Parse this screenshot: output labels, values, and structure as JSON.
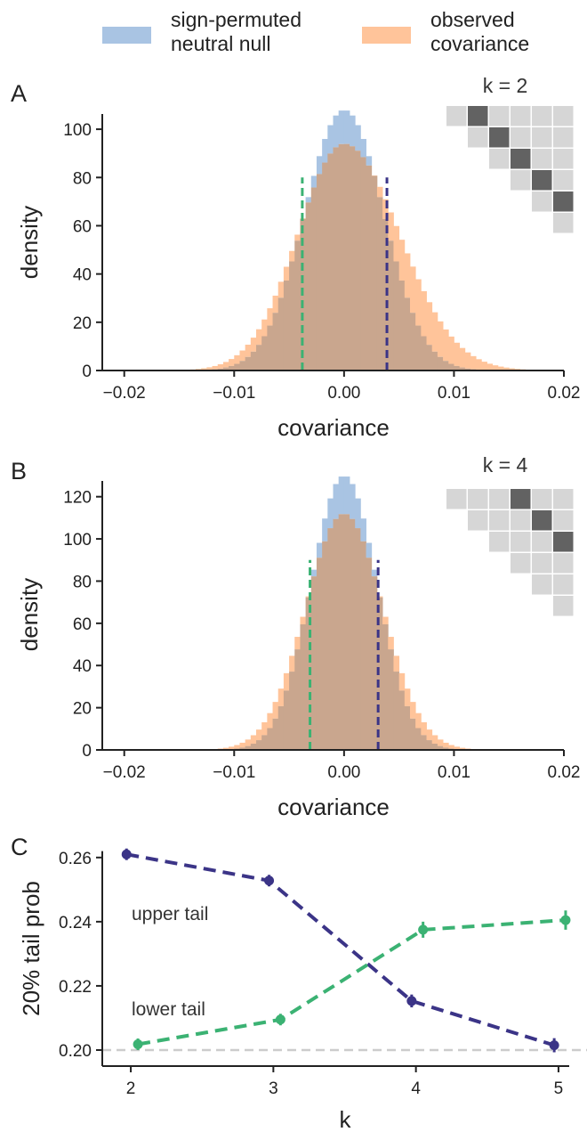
{
  "legend": {
    "items": [
      {
        "label_line1": "sign-permuted",
        "label_line2": "neutral null",
        "color": "#a9c4e3"
      },
      {
        "label_line1": "observed",
        "label_line2": "covariance",
        "color": "#ffc49a"
      }
    ]
  },
  "colors": {
    "null": "#a9c4e3",
    "observed": "#ffc49a",
    "overlap": "#c9a68e",
    "lower": "#3bb273",
    "upper": "#3b3487",
    "matrix_light": "#d6d6d6",
    "matrix_dark": "#626262",
    "ref_line": "#cccccc"
  },
  "chart_data": [
    {
      "panel": "A",
      "type": "bar",
      "subtype": "overlaid-histogram",
      "k_label": "k = 2",
      "xlabel": "covariance",
      "ylabel": "density",
      "xlim": [
        -0.022,
        0.02
      ],
      "ylim": [
        0,
        110
      ],
      "xticks": [
        "−0.02",
        "−0.01",
        "0.00",
        "0.01",
        "0.02"
      ],
      "xtick_values": [
        -0.02,
        -0.01,
        0.0,
        0.01,
        0.02
      ],
      "yticks": [
        "0",
        "20",
        "40",
        "60",
        "80",
        "100"
      ],
      "ytick_values": [
        0,
        20,
        40,
        60,
        80,
        100
      ],
      "null_sd": 0.0036,
      "null_peak": 108,
      "observed_sd": 0.0046,
      "observed_peak": 94,
      "observed_skew": 0.35,
      "lower_line": -0.0038,
      "upper_line": 0.0039,
      "lines_height": 80,
      "matrix": {
        "size": 6,
        "k": 2
      }
    },
    {
      "panel": "B",
      "type": "bar",
      "subtype": "overlaid-histogram",
      "k_label": "k = 4",
      "xlabel": "covariance",
      "ylabel": "density",
      "xlim": [
        -0.022,
        0.02
      ],
      "ylim": [
        0,
        130
      ],
      "xticks": [
        "−0.02",
        "−0.01",
        "0.00",
        "0.01",
        "0.02"
      ],
      "xtick_values": [
        -0.02,
        -0.01,
        0.0,
        0.01,
        0.02
      ],
      "yticks": [
        "0",
        "20",
        "40",
        "60",
        "80",
        "100",
        "120"
      ],
      "ytick_values": [
        0,
        20,
        40,
        60,
        80,
        100,
        120
      ],
      "null_sd": 0.003,
      "null_peak": 130,
      "observed_sd": 0.0035,
      "observed_peak": 112,
      "observed_skew": 0.0,
      "lower_line": -0.0031,
      "upper_line": 0.0031,
      "lines_height": 90,
      "matrix": {
        "size": 6,
        "k": 4
      }
    },
    {
      "panel": "C",
      "type": "line",
      "xlabel": "k",
      "ylabel": "20% tail prob",
      "xlim": [
        1.8,
        5.2
      ],
      "ylim": [
        0.195,
        0.263
      ],
      "xticks": [
        "2",
        "3",
        "4",
        "5"
      ],
      "xtick_values": [
        2,
        3,
        4,
        5
      ],
      "yticks": [
        "0.20",
        "0.22",
        "0.24",
        "0.26"
      ],
      "ytick_values": [
        0.2,
        0.22,
        0.24,
        0.26
      ],
      "reference_y": 0.2,
      "series": [
        {
          "label": "upper tail",
          "x": [
            1.97,
            2.97,
            3.97,
            4.97
          ],
          "y": [
            0.261,
            0.2528,
            0.2153,
            0.2015
          ],
          "err": [
            0.0018,
            0.0018,
            0.002,
            0.0022
          ]
        },
        {
          "label": "lower tail",
          "x": [
            2.05,
            3.05,
            4.05,
            5.05
          ],
          "y": [
            0.2018,
            0.2095,
            0.2375,
            0.2405
          ],
          "err": [
            0.0018,
            0.0018,
            0.0025,
            0.003
          ]
        }
      ]
    }
  ]
}
